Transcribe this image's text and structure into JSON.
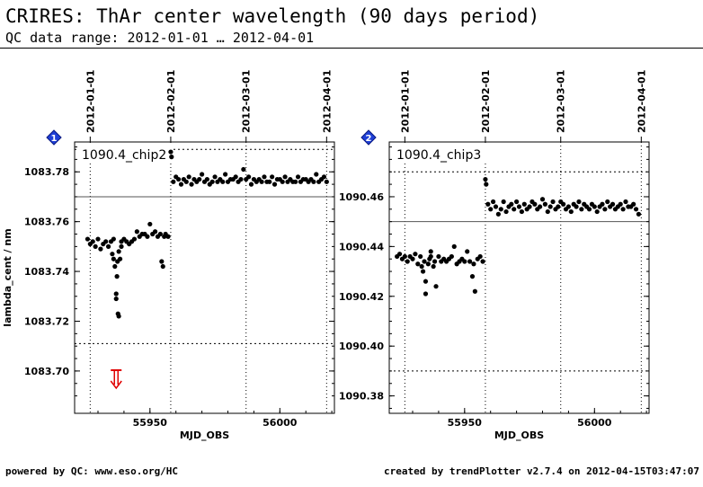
{
  "header": {
    "title": "CRIRES: ThAr center wavelength (90 days period)",
    "subtitle": "QC data range: 2012-01-01 … 2012-04-01"
  },
  "footer": {
    "left": "powered by QC: www.eso.org/HC",
    "right": "created by trendPlotter v2.7.4 on 2012-04-15T03:47:07"
  },
  "colors": {
    "points": "#000000",
    "outlier_arrow": "#e00000",
    "badge": "#1f3fd6"
  },
  "chart_data": [
    {
      "type": "scatter",
      "panel_badge": "1",
      "panel_label": "1090.4_chip2",
      "xlabel": "MJD_OBS",
      "ylabel": "lambda_cent / nm",
      "xlim": [
        55921,
        56021
      ],
      "ylim": [
        1083.683,
        1083.792
      ],
      "x_ticks": [
        55950,
        56000
      ],
      "y_ticks": [
        1083.7,
        1083.72,
        1083.74,
        1083.76,
        1083.78
      ],
      "y_tick_labels": [
        "1083.70",
        "1083.72",
        "1083.74",
        "1083.76",
        "1083.78"
      ],
      "date_ticks": [
        {
          "mjd": 55927,
          "label": "2012-01-01"
        },
        {
          "mjd": 55958,
          "label": "2012-02-01"
        },
        {
          "mjd": 55987,
          "label": "2012-03-01"
        },
        {
          "mjd": 56018,
          "label": "2012-04-01"
        }
      ],
      "reference_line": 1083.77,
      "threshold_lines": [
        1083.789,
        1083.711
      ],
      "outlier_arrow": {
        "x": 55937,
        "direction": "down"
      },
      "x": [
        55926,
        55927,
        55928,
        55929,
        55930,
        55931,
        55932,
        55933,
        55934,
        55935,
        55935.5,
        55936,
        55936,
        55936.5,
        55937,
        55937,
        55937.3,
        55937.5,
        55937.7,
        55938,
        55938,
        55938.5,
        55939,
        55939,
        55940,
        55941,
        55942,
        55943,
        55944,
        55945,
        55946,
        55947,
        55948,
        55949,
        55950,
        55951,
        55952,
        55953,
        55954,
        55954.5,
        55955,
        55955.5,
        55956,
        55957,
        55958,
        55958.3,
        55959,
        55960,
        55961,
        55962,
        55963,
        55964,
        55965,
        55966,
        55967,
        55968,
        55969,
        55970,
        55971,
        55972,
        55973,
        55974,
        55975,
        55976,
        55977,
        55978,
        55979,
        55980,
        55981,
        55982,
        55983,
        55984,
        55985,
        55986,
        55987,
        55988,
        55989,
        55990,
        55991,
        55992,
        55993,
        55994,
        55995,
        55996,
        55997,
        55998,
        55999,
        56000,
        56001,
        56002,
        56003,
        56004,
        56005,
        56006,
        56007,
        56008,
        56009,
        56010,
        56011,
        56012,
        56013,
        56014,
        56015,
        56016,
        56017,
        56018
      ],
      "y": [
        1083.753,
        1083.751,
        1083.752,
        1083.75,
        1083.753,
        1083.749,
        1083.751,
        1083.752,
        1083.75,
        1083.752,
        1083.747,
        1083.753,
        1083.745,
        1083.742,
        1083.731,
        1083.729,
        1083.738,
        1083.744,
        1083.723,
        1083.722,
        1083.748,
        1083.745,
        1083.752,
        1083.75,
        1083.753,
        1083.752,
        1083.751,
        1083.752,
        1083.753,
        1083.756,
        1083.754,
        1083.755,
        1083.755,
        1083.754,
        1083.759,
        1083.755,
        1083.756,
        1083.754,
        1083.755,
        1083.744,
        1083.742,
        1083.754,
        1083.755,
        1083.754,
        1083.788,
        1083.786,
        1083.776,
        1083.778,
        1083.777,
        1083.775,
        1083.777,
        1083.776,
        1083.778,
        1083.775,
        1083.777,
        1083.776,
        1083.777,
        1083.779,
        1083.776,
        1083.777,
        1083.775,
        1083.776,
        1083.778,
        1083.776,
        1083.777,
        1083.776,
        1083.779,
        1083.776,
        1083.777,
        1083.777,
        1083.778,
        1083.776,
        1083.777,
        1083.781,
        1083.777,
        1083.778,
        1083.775,
        1083.777,
        1083.776,
        1083.777,
        1083.776,
        1083.778,
        1083.776,
        1083.776,
        1083.778,
        1083.775,
        1083.777,
        1083.777,
        1083.776,
        1083.778,
        1083.776,
        1083.777,
        1083.776,
        1083.776,
        1083.778,
        1083.776,
        1083.777,
        1083.777,
        1083.776,
        1083.777,
        1083.776,
        1083.779,
        1083.776,
        1083.777,
        1083.778,
        1083.776
      ]
    },
    {
      "type": "scatter",
      "panel_badge": "2",
      "panel_label": "1090.4_chip3",
      "xlabel": "MJD_OBS",
      "ylabel": "",
      "xlim": [
        55921,
        56021
      ],
      "ylim": [
        1090.373,
        1090.482
      ],
      "x_ticks": [
        55950,
        56000
      ],
      "y_ticks": [
        1090.38,
        1090.4,
        1090.42,
        1090.44,
        1090.46
      ],
      "y_tick_labels": [
        "1090.38",
        "1090.40",
        "1090.42",
        "1090.44",
        "1090.46"
      ],
      "date_ticks": [
        {
          "mjd": 55927,
          "label": "2012-01-01"
        },
        {
          "mjd": 55958,
          "label": "2012-02-01"
        },
        {
          "mjd": 55987,
          "label": "2012-03-01"
        },
        {
          "mjd": 56018,
          "label": "2012-04-01"
        }
      ],
      "reference_line": 1090.45,
      "threshold_lines": [
        1090.47,
        1090.39
      ],
      "x": [
        55924,
        55925,
        55926,
        55927,
        55928,
        55929,
        55930,
        55931,
        55932,
        55933,
        55933.5,
        55934,
        55934.5,
        55935,
        55935,
        55936,
        55936.5,
        55937,
        55937,
        55938,
        55938.5,
        55939,
        55940,
        55941,
        55942,
        55943,
        55944,
        55945,
        55946,
        55947,
        55948,
        55949,
        55950,
        55951,
        55952,
        55953,
        55953.5,
        55954,
        55955,
        55956,
        55957,
        55958,
        55958.3,
        55959,
        55960,
        55961,
        55962,
        55963,
        55964,
        55965,
        55966,
        55967,
        55968,
        55969,
        55970,
        55971,
        55972,
        55973,
        55974,
        55975,
        55976,
        55977,
        55978,
        55979,
        55980,
        55981,
        55982,
        55983,
        55984,
        55985,
        55986,
        55987,
        55988,
        55989,
        55990,
        55991,
        55992,
        55993,
        55994,
        55995,
        55996,
        55997,
        55998,
        55999,
        56000,
        56001,
        56002,
        56003,
        56004,
        56005,
        56006,
        56007,
        56008,
        56009,
        56010,
        56011,
        56012,
        56013,
        56014,
        56015,
        56016,
        56017
      ],
      "y": [
        1090.436,
        1090.437,
        1090.435,
        1090.436,
        1090.434,
        1090.436,
        1090.435,
        1090.437,
        1090.433,
        1090.436,
        1090.432,
        1090.43,
        1090.434,
        1090.426,
        1090.421,
        1090.433,
        1090.435,
        1090.438,
        1090.436,
        1090.432,
        1090.434,
        1090.424,
        1090.436,
        1090.434,
        1090.435,
        1090.434,
        1090.435,
        1090.436,
        1090.44,
        1090.433,
        1090.434,
        1090.435,
        1090.434,
        1090.438,
        1090.434,
        1090.428,
        1090.433,
        1090.422,
        1090.435,
        1090.436,
        1090.434,
        1090.467,
        1090.465,
        1090.457,
        1090.455,
        1090.458,
        1090.456,
        1090.453,
        1090.455,
        1090.458,
        1090.454,
        1090.456,
        1090.457,
        1090.455,
        1090.458,
        1090.456,
        1090.454,
        1090.457,
        1090.455,
        1090.456,
        1090.458,
        1090.457,
        1090.455,
        1090.456,
        1090.459,
        1090.457,
        1090.454,
        1090.456,
        1090.458,
        1090.455,
        1090.456,
        1090.458,
        1090.457,
        1090.455,
        1090.456,
        1090.454,
        1090.457,
        1090.456,
        1090.458,
        1090.455,
        1090.457,
        1090.456,
        1090.455,
        1090.457,
        1090.456,
        1090.454,
        1090.456,
        1090.457,
        1090.455,
        1090.458,
        1090.456,
        1090.457,
        1090.455,
        1090.456,
        1090.457,
        1090.455,
        1090.458,
        1090.456,
        1090.456,
        1090.457,
        1090.455,
        1090.453
      ]
    }
  ]
}
